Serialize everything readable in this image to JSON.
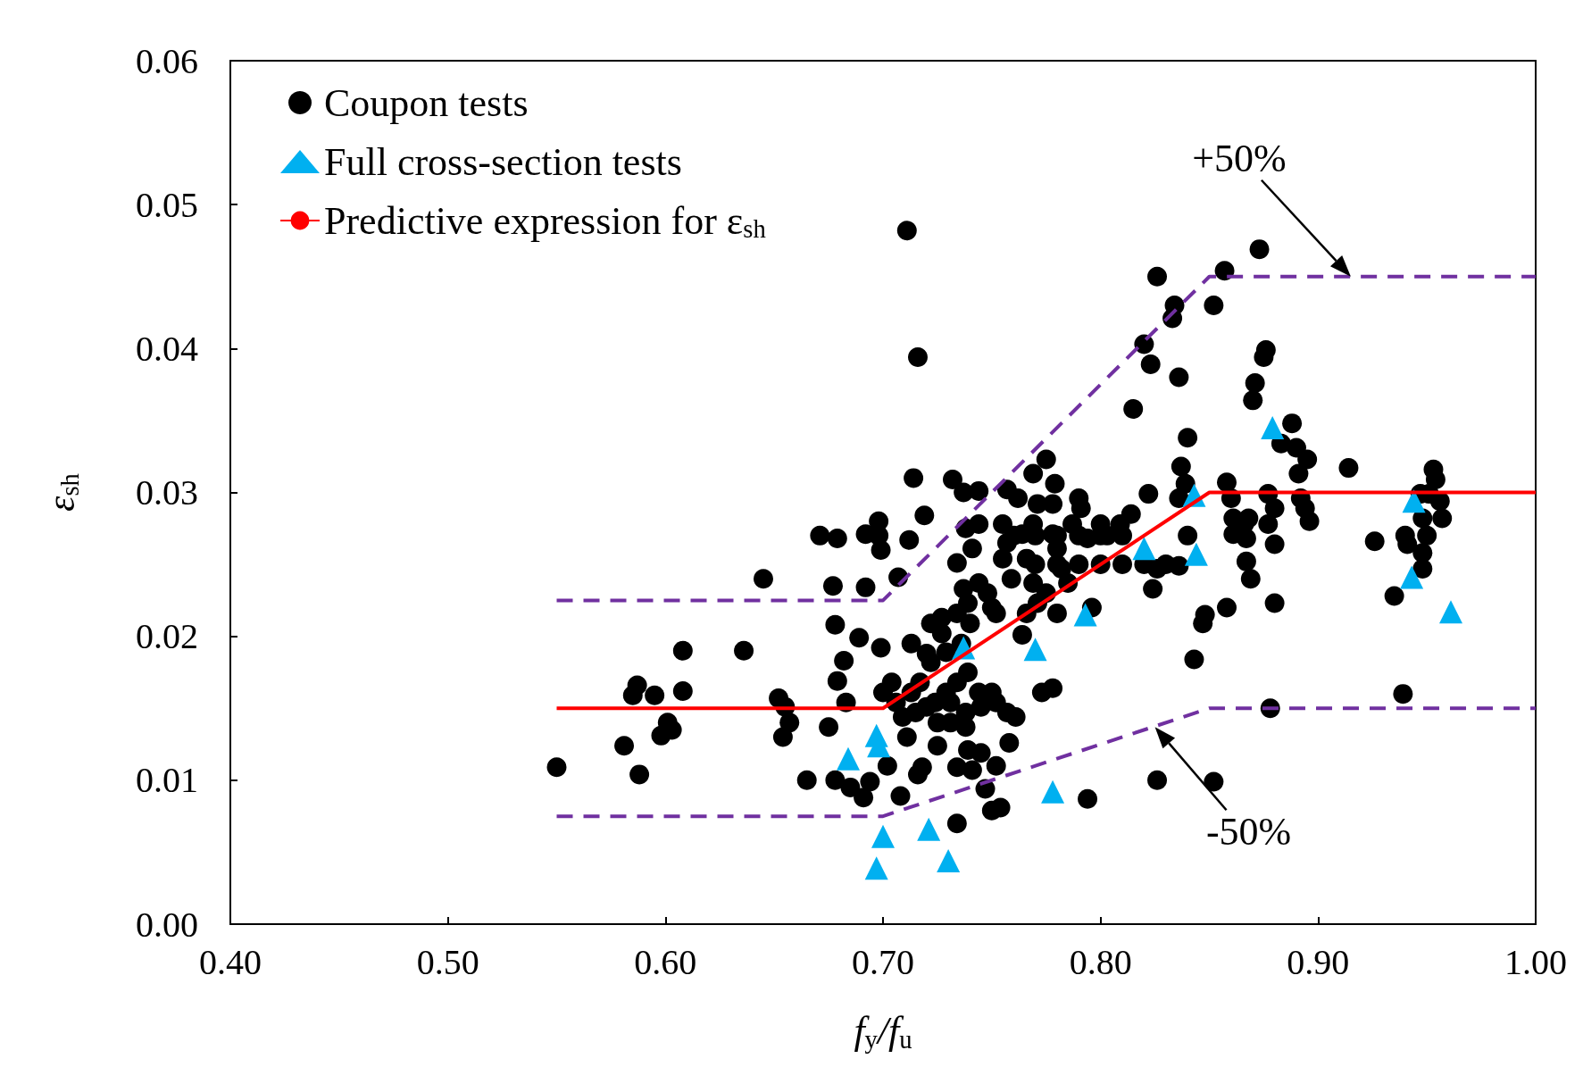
{
  "chart_data": {
    "type": "scatter",
    "xlabel": "f$_{y}$/f$_{u}$",
    "ylabel": "ε$_{sh}$",
    "xlim": [
      0.4,
      1.0
    ],
    "ylim": [
      0,
      0.06
    ],
    "xticks": [
      {
        "value": 0.4,
        "label": "0.40"
      },
      {
        "value": 0.5,
        "label": "0.50"
      },
      {
        "value": 0.6,
        "label": "0.60"
      },
      {
        "value": 0.7,
        "label": "0.70"
      },
      {
        "value": 0.8,
        "label": "0.80"
      },
      {
        "value": 0.9,
        "label": "0.90"
      },
      {
        "value": 1.0,
        "label": "1.00"
      }
    ],
    "yticks": [
      {
        "value": 0,
        "label": "0.00"
      },
      {
        "value": 0.01,
        "label": "0.01"
      },
      {
        "value": 0.02,
        "label": "0.02"
      },
      {
        "value": 0.03,
        "label": "0.03"
      },
      {
        "value": 0.04,
        "label": "0.04"
      },
      {
        "value": 0.05,
        "label": "0.05"
      },
      {
        "value": 0.06,
        "label": "0.06"
      }
    ],
    "grid": false,
    "legend": "top left",
    "annotations": [
      {
        "text": "+50%",
        "x": 0.915,
        "y": 0.045
      },
      {
        "text": "-50%",
        "x": 0.825,
        "y": 0.0137
      }
    ],
    "series": [
      {
        "name": "Coupon tests",
        "marker": "circle",
        "color": "#000000",
        "x": [
          0.55,
          0.581,
          0.585,
          0.587,
          0.595,
          0.588,
          0.598,
          0.601,
          0.603,
          0.608,
          0.608,
          0.636,
          0.645,
          0.652,
          0.655,
          0.657,
          0.654,
          0.665,
          0.671,
          0.679,
          0.677,
          0.678,
          0.682,
          0.679,
          0.675,
          0.683,
          0.678,
          0.685,
          0.691,
          0.694,
          0.689,
          0.692,
          0.692,
          0.698,
          0.699,
          0.698,
          0.699,
          0.702,
          0.708,
          0.704,
          0.706,
          0.7,
          0.707,
          0.712,
          0.714,
          0.711,
          0.716,
          0.719,
          0.716,
          0.718,
          0.725,
          0.734,
          0.732,
          0.737,
          0.744,
          0.734,
          0.739,
          0.741,
          0.745,
          0.747,
          0.75,
          0.754,
          0.752,
          0.758,
          0.709,
          0.715,
          0.72,
          0.724,
          0.729,
          0.734,
          0.739,
          0.722,
          0.729,
          0.736,
          0.74,
          0.734,
          0.727,
          0.739,
          0.744,
          0.737,
          0.734,
          0.741,
          0.738,
          0.744,
          0.731,
          0.738,
          0.745,
          0.752,
          0.757,
          0.761,
          0.75,
          0.744,
          0.713,
          0.717,
          0.713,
          0.72,
          0.727,
          0.722,
          0.725,
          0.731,
          0.738,
          0.711,
          0.748,
          0.75,
          0.752,
          0.755,
          0.757,
          0.755,
          0.759,
          0.757,
          0.762,
          0.764,
          0.766,
          0.769,
          0.771,
          0.769,
          0.775,
          0.769,
          0.766,
          0.764,
          0.771,
          0.775,
          0.778,
          0.779,
          0.778,
          0.78,
          0.782,
          0.785,
          0.78,
          0.773,
          0.778,
          0.79,
          0.791,
          0.787,
          0.794,
          0.796,
          0.77,
          0.78,
          0.79,
          0.8,
          0.81,
          0.82,
          0.83,
          0.76,
          0.77,
          0.78,
          0.79,
          0.8,
          0.81,
          0.794,
          0.8,
          0.803,
          0.809,
          0.814,
          0.815,
          0.82,
          0.823,
          0.826,
          0.822,
          0.824,
          0.826,
          0.826,
          0.833,
          0.834,
          0.836,
          0.84,
          0.837,
          0.839,
          0.836,
          0.84,
          0.836,
          0.843,
          0.847,
          0.848,
          0.852,
          0.857,
          0.852,
          0.858,
          0.858,
          0.86,
          0.861,
          0.861,
          0.866,
          0.867,
          0.867,
          0.869,
          0.868,
          0.873,
          0.876,
          0.875,
          0.871,
          0.87,
          0.877,
          0.88,
          0.88,
          0.877,
          0.88,
          0.878,
          0.883,
          0.888,
          0.89,
          0.895,
          0.891,
          0.892,
          0.894,
          0.896,
          0.914,
          0.926,
          0.935,
          0.939,
          0.94,
          0.941,
          0.947,
          0.948,
          0.95,
          0.948,
          0.948,
          0.953,
          0.954,
          0.951,
          0.956,
          0.957
        ],
        "values": [
          0.0109,
          0.0124,
          0.0159,
          0.0166,
          0.0159,
          0.0104,
          0.0131,
          0.014,
          0.0135,
          0.019,
          0.0162,
          0.019,
          0.024,
          0.0157,
          0.0151,
          0.014,
          0.013,
          0.01,
          0.027,
          0.0268,
          0.0235,
          0.0208,
          0.0183,
          0.0169,
          0.0137,
          0.0154,
          0.01,
          0.0095,
          0.0088,
          0.0099,
          0.0199,
          0.0271,
          0.0234,
          0.028,
          0.026,
          0.027,
          0.0192,
          0.011,
          0.0089,
          0.0168,
          0.0154,
          0.0161,
          0.0241,
          0.0267,
          0.031,
          0.0482,
          0.0394,
          0.0284,
          0.0104,
          0.0109,
          0.0124,
          0.007,
          0.0309,
          0.03,
          0.0301,
          0.0109,
          0.0121,
          0.0107,
          0.0119,
          0.0094,
          0.0079,
          0.0081,
          0.011,
          0.0126,
          0.0144,
          0.0147,
          0.0151,
          0.0154,
          0.0161,
          0.0168,
          0.0175,
          0.0182,
          0.0189,
          0.0195,
          0.0209,
          0.0216,
          0.0213,
          0.0223,
          0.0237,
          0.0233,
          0.0251,
          0.0261,
          0.0275,
          0.0278,
          0.0154,
          0.0147,
          0.0151,
          0.0154,
          0.0147,
          0.0144,
          0.0161,
          0.0161,
          0.0161,
          0.0168,
          0.0195,
          0.0188,
          0.0202,
          0.0209,
          0.014,
          0.014,
          0.0137,
          0.013,
          0.023,
          0.022,
          0.0216,
          0.0278,
          0.0265,
          0.0254,
          0.024,
          0.0302,
          0.0296,
          0.0271,
          0.0254,
          0.0278,
          0.0292,
          0.0313,
          0.0323,
          0.0237,
          0.0216,
          0.0201,
          0.0223,
          0.023,
          0.0271,
          0.0306,
          0.0292,
          0.0261,
          0.0247,
          0.0237,
          0.0216,
          0.0161,
          0.0164,
          0.0296,
          0.0289,
          0.0278,
          0.0268,
          0.022,
          0.025,
          0.025,
          0.025,
          0.025,
          0.025,
          0.025,
          0.025,
          0.027,
          0.027,
          0.027,
          0.027,
          0.027,
          0.027,
          0.0087,
          0.0278,
          0.027,
          0.0278,
          0.0285,
          0.0358,
          0.0403,
          0.0389,
          0.045,
          0.0299,
          0.0233,
          0.01,
          0.0247,
          0.0421,
          0.043,
          0.038,
          0.0338,
          0.0318,
          0.0306,
          0.0296,
          0.027,
          0.0249,
          0.0184,
          0.0209,
          0.0215,
          0.043,
          0.0454,
          0.0099,
          0.022,
          0.0307,
          0.0296,
          0.0282,
          0.0271,
          0.0278,
          0.0268,
          0.0252,
          0.024,
          0.0282,
          0.0469,
          0.0399,
          0.0394,
          0.0376,
          0.0364,
          0.0299,
          0.0289,
          0.0264,
          0.0278,
          0.0223,
          0.015,
          0.0334,
          0.0348,
          0.0331,
          0.0323,
          0.0313,
          0.0296,
          0.0289,
          0.028,
          0.0317,
          0.0266,
          0.0228,
          0.016,
          0.027,
          0.0264,
          0.0299,
          0.0282,
          0.027,
          0.0258,
          0.0247,
          0.0316,
          0.0309,
          0.0299,
          0.0294,
          0.0282
        ]
      },
      {
        "name": "Full cross-section tests",
        "marker": "triangle",
        "color": "#00b0f0",
        "x": [
          0.684,
          0.697,
          0.698,
          0.7,
          0.697,
          0.721,
          0.73,
          0.737,
          0.77,
          0.778,
          0.793,
          0.82,
          0.843,
          0.844,
          0.879,
          0.944,
          0.943,
          0.961
        ],
        "values": [
          0.0115,
          0.0131,
          0.0124,
          0.0061,
          0.0039,
          0.0066,
          0.0044,
          0.0192,
          0.0191,
          0.0092,
          0.0215,
          0.0261,
          0.0298,
          0.0257,
          0.0345,
          0.0294,
          0.0241,
          0.0217
        ]
      },
      {
        "name": "Predictive expression for ε$_{sh}$",
        "type": "line",
        "marker": "none",
        "line_style": "solid",
        "color": "#ff0000",
        "x": [
          0.55,
          0.7,
          0.85,
          1.0
        ],
        "values": [
          0.015,
          0.015,
          0.03,
          0.03
        ]
      },
      {
        "type": "line",
        "marker": "none",
        "line_style": "dashed",
        "color": "#7030a0",
        "x": [
          0.55,
          0.7,
          0.85,
          1.0
        ],
        "values": [
          0.0225,
          0.0225,
          0.045,
          0.045
        ]
      },
      {
        "type": "line",
        "marker": "none",
        "line_style": "dashed",
        "color": "#7030a0",
        "x": [
          0.55,
          0.7,
          0.85,
          1.0
        ],
        "values": [
          0.0075,
          0.0075,
          0.015,
          0.015
        ]
      }
    ]
  }
}
